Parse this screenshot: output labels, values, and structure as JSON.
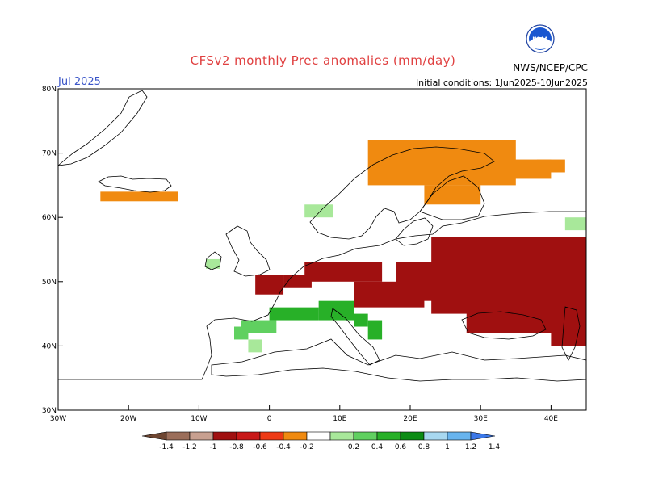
{
  "header": {
    "title": "CFSv2 monthly Prec anomalies (mm/day)",
    "month": "Jul 2025",
    "initial_conditions": "Initial conditions: 1Jun2025-10Jun2025",
    "agency": "NWS/NCEP/CPC",
    "logo_text": "NOAA"
  },
  "map": {
    "projection": "lat-lon",
    "lon_range": [
      -30,
      45
    ],
    "lat_range": [
      30,
      80
    ],
    "lat_ticks": [
      "80N",
      "70N",
      "60N",
      "50N",
      "40N",
      "30N"
    ],
    "lon_ticks": [
      "30W",
      "20W",
      "10W",
      "0",
      "10E",
      "20E",
      "30E",
      "40E"
    ]
  },
  "chart_data": {
    "type": "heatmap",
    "title": "CFSv2 monthly Prec anomalies (mm/day)",
    "xlabel": "",
    "ylabel": "",
    "units": "mm/day",
    "regions": [
      {
        "name": "Iceland",
        "anomaly": -0.3
      },
      {
        "name": "Northern Norway / Finland",
        "anomaly": -0.3
      },
      {
        "name": "Eastern Europe / Ukraine / Western Russia",
        "anomaly": -0.8
      },
      {
        "name": "Southwest Norway",
        "anomaly": 0.3
      },
      {
        "name": "Northern Italy / Alps",
        "anomaly": 0.6
      },
      {
        "name": "Southern France",
        "anomaly": 0.4
      },
      {
        "name": "Central Iberia",
        "anomaly": 0.2
      },
      {
        "name": "Ireland",
        "anomaly": 0.2
      },
      {
        "name": "Southeast Caspian area",
        "anomaly": 0.2
      }
    ]
  },
  "colorbar": {
    "labels": [
      "-1.4",
      "-1.2",
      "-1",
      "-0.8",
      "-0.6",
      "-0.4",
      "-0.2",
      "0.2",
      "0.4",
      "0.6",
      "0.8",
      "1",
      "1.2",
      "1.4"
    ],
    "colors": [
      "#6e4632",
      "#9b6e5a",
      "#c8a090",
      "#a01010",
      "#c81818",
      "#ee3a15",
      "#f08a10",
      "#ffffff",
      "#a8e89a",
      "#60d060",
      "#28b028",
      "#0c8c14",
      "#a8d8f0",
      "#68b4ee",
      "#3c78e8"
    ]
  }
}
